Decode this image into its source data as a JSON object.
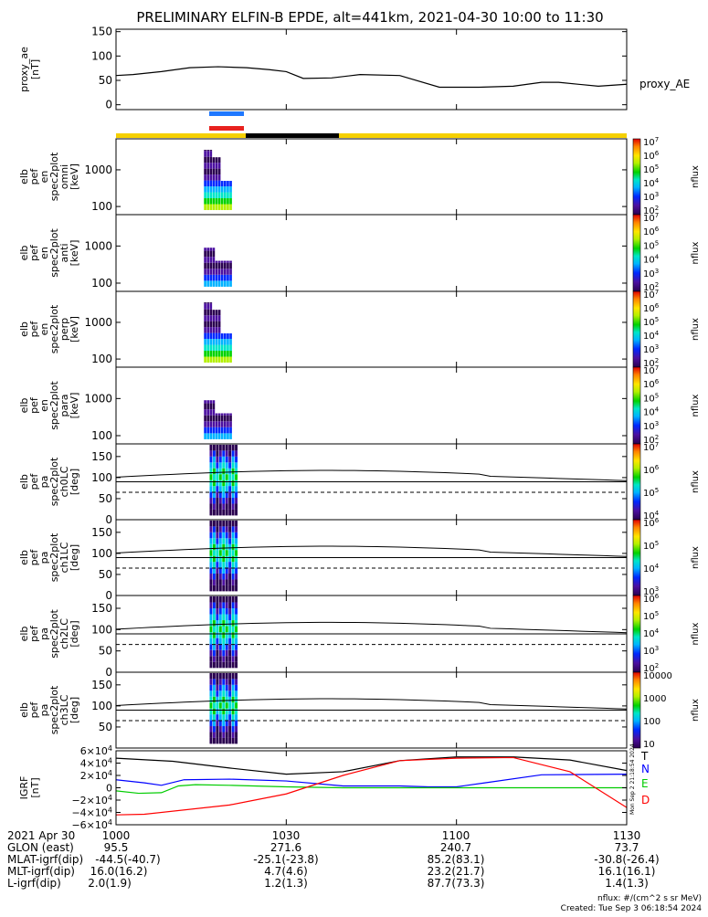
{
  "title": "PRELIMINARY ELFIN-B EPDE, alt=441km, 2021-04-30 10:00 to 11:30",
  "chart_data": [
    {
      "type": "line",
      "ylabel": "proxy_ae [nT]",
      "ylabel_lines": [
        "proxy_ae",
        "[nT]"
      ],
      "yticks": [
        "150",
        "100",
        "50",
        "0"
      ],
      "ylim": [
        -10,
        155
      ],
      "series": [
        {
          "name": "proxy_AE",
          "x": [
            0,
            3,
            8,
            13,
            18,
            23,
            27,
            30,
            33,
            38,
            43,
            50,
            57,
            64,
            70,
            75,
            78,
            85,
            90
          ],
          "values": [
            60,
            62,
            68,
            76,
            78,
            76,
            72,
            68,
            54,
            55,
            62,
            60,
            36,
            36,
            38,
            46,
            46,
            38,
            42
          ]
        }
      ]
    },
    {
      "type": "heatmap",
      "ylabel_lines": [
        "elb",
        "pef",
        "en",
        "spec2plot",
        "omni",
        "[keV]"
      ],
      "yticks": [
        "1000",
        "100"
      ],
      "ylim": [
        60,
        7000
      ],
      "yscale": "log",
      "zlabel": "nflux",
      "zticks": [
        "10^2",
        "10^3",
        "10^4",
        "10^5",
        "10^6",
        "10^7"
      ]
    },
    {
      "type": "heatmap",
      "ylabel_lines": [
        "elb",
        "pef",
        "en",
        "spec2plot",
        "anti",
        "[keV]"
      ],
      "yticks": [
        "1000",
        "100"
      ],
      "ylim": [
        60,
        7000
      ],
      "yscale": "log",
      "zlabel": "nflux",
      "zticks": [
        "10^2",
        "10^3",
        "10^4",
        "10^5",
        "10^6",
        "10^7"
      ]
    },
    {
      "type": "heatmap",
      "ylabel_lines": [
        "elb",
        "pef",
        "en",
        "spec2plot",
        "perp",
        "[keV]"
      ],
      "yticks": [
        "1000",
        "100"
      ],
      "ylim": [
        60,
        7000
      ],
      "yscale": "log",
      "zlabel": "nflux",
      "zticks": [
        "10^2",
        "10^3",
        "10^4",
        "10^5",
        "10^6",
        "10^7"
      ]
    },
    {
      "type": "heatmap",
      "ylabel_lines": [
        "elb",
        "pef",
        "en",
        "spec2plot",
        "para",
        "[keV]"
      ],
      "yticks": [
        "1000",
        "100"
      ],
      "ylim": [
        60,
        7000
      ],
      "yscale": "log",
      "zlabel": "nflux",
      "zticks": [
        "10^2",
        "10^3",
        "10^4",
        "10^5",
        "10^6",
        "10^7"
      ]
    },
    {
      "type": "heatmap",
      "ylabel_lines": [
        "elb",
        "pef",
        "pa",
        "spec2plot",
        "ch0LC",
        "[deg]"
      ],
      "yticks": [
        "150",
        "100",
        "50",
        "0"
      ],
      "ylim": [
        0,
        180
      ],
      "zlabel": "nflux",
      "zticks": [
        "10^4",
        "10^5",
        "10^6",
        "10^7"
      ]
    },
    {
      "type": "heatmap",
      "ylabel_lines": [
        "elb",
        "pef",
        "pa",
        "spec2plot",
        "ch1LC",
        "[deg]"
      ],
      "yticks": [
        "150",
        "100",
        "50",
        "0"
      ],
      "ylim": [
        0,
        180
      ],
      "zlabel": "nflux",
      "zticks": [
        "10^3",
        "10^4",
        "10^5",
        "10^6"
      ]
    },
    {
      "type": "heatmap",
      "ylabel_lines": [
        "elb",
        "pef",
        "pa",
        "spec2plot",
        "ch2LC",
        "[deg]"
      ],
      "yticks": [
        "150",
        "100",
        "50",
        "0"
      ],
      "ylim": [
        0,
        180
      ],
      "zlabel": "nflux",
      "zticks": [
        "10^2",
        "10^3",
        "10^4",
        "10^5",
        "10^6"
      ]
    },
    {
      "type": "heatmap",
      "ylabel_lines": [
        "elb",
        "pef",
        "pa",
        "spec2plot",
        "ch3LC",
        "[deg]"
      ],
      "yticks": [
        "150",
        "100",
        "50"
      ],
      "ylim": [
        0,
        180
      ],
      "zlabel": "nflux",
      "zticks": [
        "10",
        "100",
        "1000",
        "10000"
      ]
    },
    {
      "type": "line",
      "ylabel_lines": [
        "IGRF",
        "[nT]"
      ],
      "yticks": [
        "6×10^4",
        "4×10^4",
        "2×10^4",
        "0",
        "−2×10^4",
        "−4×10^4",
        "−6×10^4"
      ],
      "ylim": [
        -60000,
        60000
      ],
      "legend_placement": "right",
      "series": [
        {
          "name": "T",
          "color": "#000000",
          "x": [
            0,
            10,
            20,
            30,
            40,
            50,
            60,
            70,
            80,
            90
          ],
          "values": [
            48000,
            43000,
            32000,
            22000,
            26000,
            44000,
            50000,
            50000,
            45000,
            28000
          ]
        },
        {
          "name": "N",
          "color": "#0000ff",
          "x": [
            0,
            5,
            8,
            12,
            20,
            30,
            40,
            50,
            55,
            60,
            65,
            75,
            90
          ],
          "values": [
            13000,
            8000,
            4000,
            13000,
            14000,
            11000,
            3000,
            3000,
            1500,
            1500,
            8000,
            21000,
            22000
          ]
        },
        {
          "name": "E",
          "color": "#00cc00",
          "x": [
            0,
            4,
            8,
            11,
            14,
            20,
            30,
            40,
            90
          ],
          "values": [
            -5000,
            -9000,
            -8000,
            3000,
            5000,
            4000,
            1500,
            0,
            0
          ]
        },
        {
          "name": "D",
          "color": "#ff0000",
          "x": [
            0,
            5,
            20,
            30,
            40,
            50,
            60,
            70,
            80,
            90
          ],
          "values": [
            -44000,
            -43000,
            -28000,
            -10000,
            20000,
            44000,
            48000,
            49000,
            26000,
            -32000
          ]
        }
      ]
    }
  ],
  "time_axis": {
    "ticks": [
      "1000",
      "1030",
      "1100",
      "1130"
    ],
    "tick_minutes": [
      0,
      30,
      60,
      90
    ],
    "date_label": "2021 Apr 30"
  },
  "footer": {
    "rows": [
      {
        "label": "GLON (east)",
        "values": [
          "95.5",
          "271.6",
          "240.7",
          "73.7"
        ]
      },
      {
        "label": "MLAT-igrf(dip)",
        "values": [
          "-44.5(-40.7)",
          "-25.1(-23.8)",
          "85.2(83.1)",
          "-30.8(-26.4)"
        ]
      },
      {
        "label": "MLT-igrf(dip)",
        "values": [
          "16.0(16.2)",
          "4.7(4.6)",
          "23.2(21.7)",
          "16.1(16.1)"
        ]
      },
      {
        "label": "L-igrf(dip)",
        "values": [
          "2.0(1.9)",
          "1.2(1.3)",
          "87.7(73.3)",
          "1.4(1.3)"
        ]
      }
    ],
    "units_note": "nflux: #/(cm^2 s sr MeV)",
    "created": "Created: Tue Sep  3 06:18:54 2024",
    "side_stamp": "Mon Sep  2 21:18:54 2024"
  },
  "colors": {
    "blue_bar": "#1f78ff",
    "red_bar": "#e8221f",
    "status_yellow": "#f5d000",
    "status_black": "#000000"
  }
}
